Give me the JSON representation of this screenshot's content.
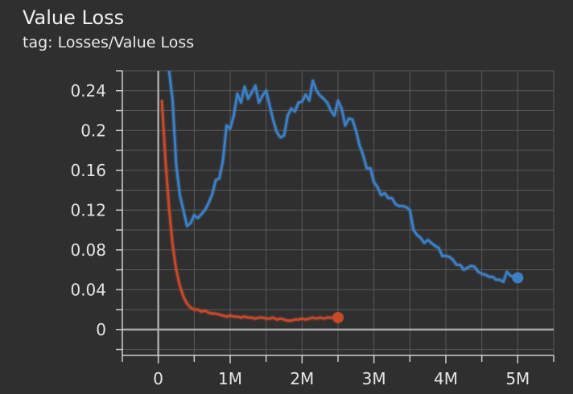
{
  "header": {
    "title": "Value Loss",
    "tag": "tag: Losses/Value Loss"
  },
  "colors": {
    "background": "#2f2f2f",
    "grid": "#5a5a5a",
    "axis": "#a8a8a8",
    "blue": "#3d7fc4",
    "red": "#c8482a"
  },
  "chart_data": {
    "type": "line",
    "title": "Value Loss",
    "subtitle": "tag: Losses/Value Loss",
    "xlabel": "",
    "ylabel": "",
    "xlim": [
      -500000,
      5500000
    ],
    "ylim": [
      -0.026,
      0.26
    ],
    "grid": true,
    "legend": "none",
    "x_ticks": [
      {
        "value": 0,
        "label": "0"
      },
      {
        "value": 1000000,
        "label": "1M"
      },
      {
        "value": 2000000,
        "label": "2M"
      },
      {
        "value": 3000000,
        "label": "3M"
      },
      {
        "value": 4000000,
        "label": "4M"
      },
      {
        "value": 5000000,
        "label": "5M"
      }
    ],
    "y_ticks": [
      {
        "value": 0,
        "label": "0"
      },
      {
        "value": 0.04,
        "label": "0.04"
      },
      {
        "value": 0.08,
        "label": "0.08"
      },
      {
        "value": 0.12,
        "label": "0.12"
      },
      {
        "value": 0.16,
        "label": "0.16"
      },
      {
        "value": 0.2,
        "label": "0.2"
      },
      {
        "value": 0.24,
        "label": "0.24"
      }
    ],
    "series": [
      {
        "color": "#3d7fc4",
        "x": [
          150000,
          200000,
          250000,
          300000,
          350000,
          400000,
          450000,
          500000,
          550000,
          600000,
          650000,
          700000,
          750000,
          800000,
          850000,
          900000,
          950000,
          1000000,
          1050000,
          1100000,
          1150000,
          1200000,
          1250000,
          1300000,
          1350000,
          1400000,
          1450000,
          1500000,
          1550000,
          1600000,
          1650000,
          1700000,
          1750000,
          1800000,
          1850000,
          1900000,
          1950000,
          2000000,
          2050000,
          2100000,
          2150000,
          2200000,
          2250000,
          2300000,
          2350000,
          2400000,
          2450000,
          2500000,
          2550000,
          2600000,
          2650000,
          2700000,
          2750000,
          2800000,
          2850000,
          2900000,
          2950000,
          3000000,
          3050000,
          3100000,
          3150000,
          3200000,
          3250000,
          3300000,
          3350000,
          3400000,
          3450000,
          3500000,
          3550000,
          3600000,
          3650000,
          3700000,
          3750000,
          3800000,
          3850000,
          3900000,
          3950000,
          4000000,
          4050000,
          4100000,
          4150000,
          4200000,
          4250000,
          4300000,
          4350000,
          4400000,
          4450000,
          4500000,
          4550000,
          4600000,
          4650000,
          4700000,
          4750000,
          4800000,
          4850000,
          4900000,
          4950000,
          5000000
        ],
        "values": [
          0.26,
          0.23,
          0.165,
          0.135,
          0.12,
          0.104,
          0.107,
          0.115,
          0.112,
          0.116,
          0.12,
          0.127,
          0.136,
          0.15,
          0.152,
          0.17,
          0.205,
          0.202,
          0.215,
          0.237,
          0.228,
          0.244,
          0.232,
          0.238,
          0.245,
          0.228,
          0.235,
          0.24,
          0.225,
          0.21,
          0.198,
          0.193,
          0.195,
          0.215,
          0.222,
          0.219,
          0.228,
          0.229,
          0.236,
          0.23,
          0.25,
          0.24,
          0.235,
          0.232,
          0.228,
          0.22,
          0.215,
          0.23,
          0.222,
          0.205,
          0.212,
          0.211,
          0.2,
          0.185,
          0.175,
          0.162,
          0.162,
          0.148,
          0.143,
          0.135,
          0.137,
          0.132,
          0.132,
          0.126,
          0.124,
          0.124,
          0.123,
          0.12,
          0.1,
          0.095,
          0.092,
          0.087,
          0.09,
          0.087,
          0.084,
          0.082,
          0.074,
          0.074,
          0.073,
          0.07,
          0.065,
          0.065,
          0.06,
          0.062,
          0.064,
          0.063,
          0.058,
          0.056,
          0.055,
          0.053,
          0.053,
          0.05,
          0.05,
          0.048,
          0.058,
          0.054,
          0.053,
          0.052
        ]
      },
      {
        "color": "#c8482a",
        "x": [
          50000,
          100000,
          150000,
          200000,
          250000,
          300000,
          350000,
          400000,
          450000,
          500000,
          550000,
          600000,
          650000,
          700000,
          750000,
          800000,
          850000,
          900000,
          950000,
          1000000,
          1050000,
          1100000,
          1150000,
          1200000,
          1250000,
          1300000,
          1350000,
          1400000,
          1450000,
          1500000,
          1550000,
          1600000,
          1650000,
          1700000,
          1750000,
          1800000,
          1850000,
          1900000,
          1950000,
          2000000,
          2050000,
          2100000,
          2150000,
          2200000,
          2250000,
          2300000,
          2350000,
          2400000,
          2450000,
          2500000
        ],
        "values": [
          0.23,
          0.17,
          0.122,
          0.085,
          0.06,
          0.044,
          0.033,
          0.026,
          0.022,
          0.02,
          0.02,
          0.018,
          0.019,
          0.017,
          0.016,
          0.016,
          0.015,
          0.014,
          0.013,
          0.014,
          0.013,
          0.013,
          0.012,
          0.013,
          0.012,
          0.012,
          0.011,
          0.012,
          0.012,
          0.011,
          0.011,
          0.012,
          0.01,
          0.011,
          0.01,
          0.009,
          0.009,
          0.01,
          0.01,
          0.011,
          0.01,
          0.011,
          0.012,
          0.011,
          0.012,
          0.011,
          0.012,
          0.012,
          0.012,
          0.012
        ]
      }
    ]
  }
}
